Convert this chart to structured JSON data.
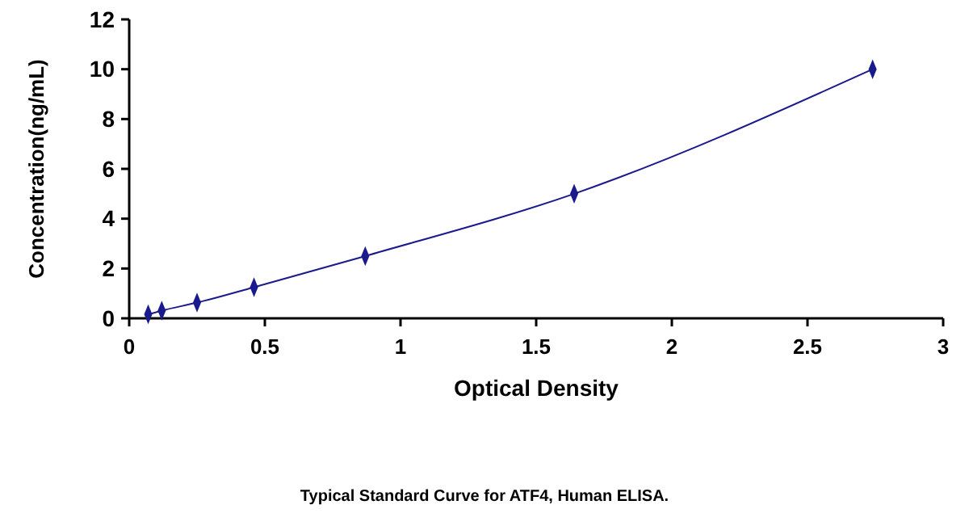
{
  "chart_data": {
    "type": "line",
    "title": "Typical Standard Curve for ATF4, Human ELISA.",
    "xlabel": "Optical Density",
    "ylabel": "Concentration(ng/mL)",
    "x": [
      0.07,
      0.12,
      0.25,
      0.46,
      0.87,
      1.64,
      2.74
    ],
    "series": [
      {
        "color": "#1a1a8c",
        "values": [
          0.16,
          0.31,
          0.63,
          1.25,
          2.5,
          5,
          10
        ]
      }
    ],
    "xlim": [
      0,
      3
    ],
    "xticks": [
      0,
      0.5,
      1,
      1.5,
      2,
      2.5,
      3
    ],
    "ylim": [
      0,
      12
    ],
    "yticks": [
      0,
      2,
      4,
      6,
      8,
      10,
      12
    ],
    "grid": false,
    "marker": "diamond",
    "line_style": "solid"
  }
}
